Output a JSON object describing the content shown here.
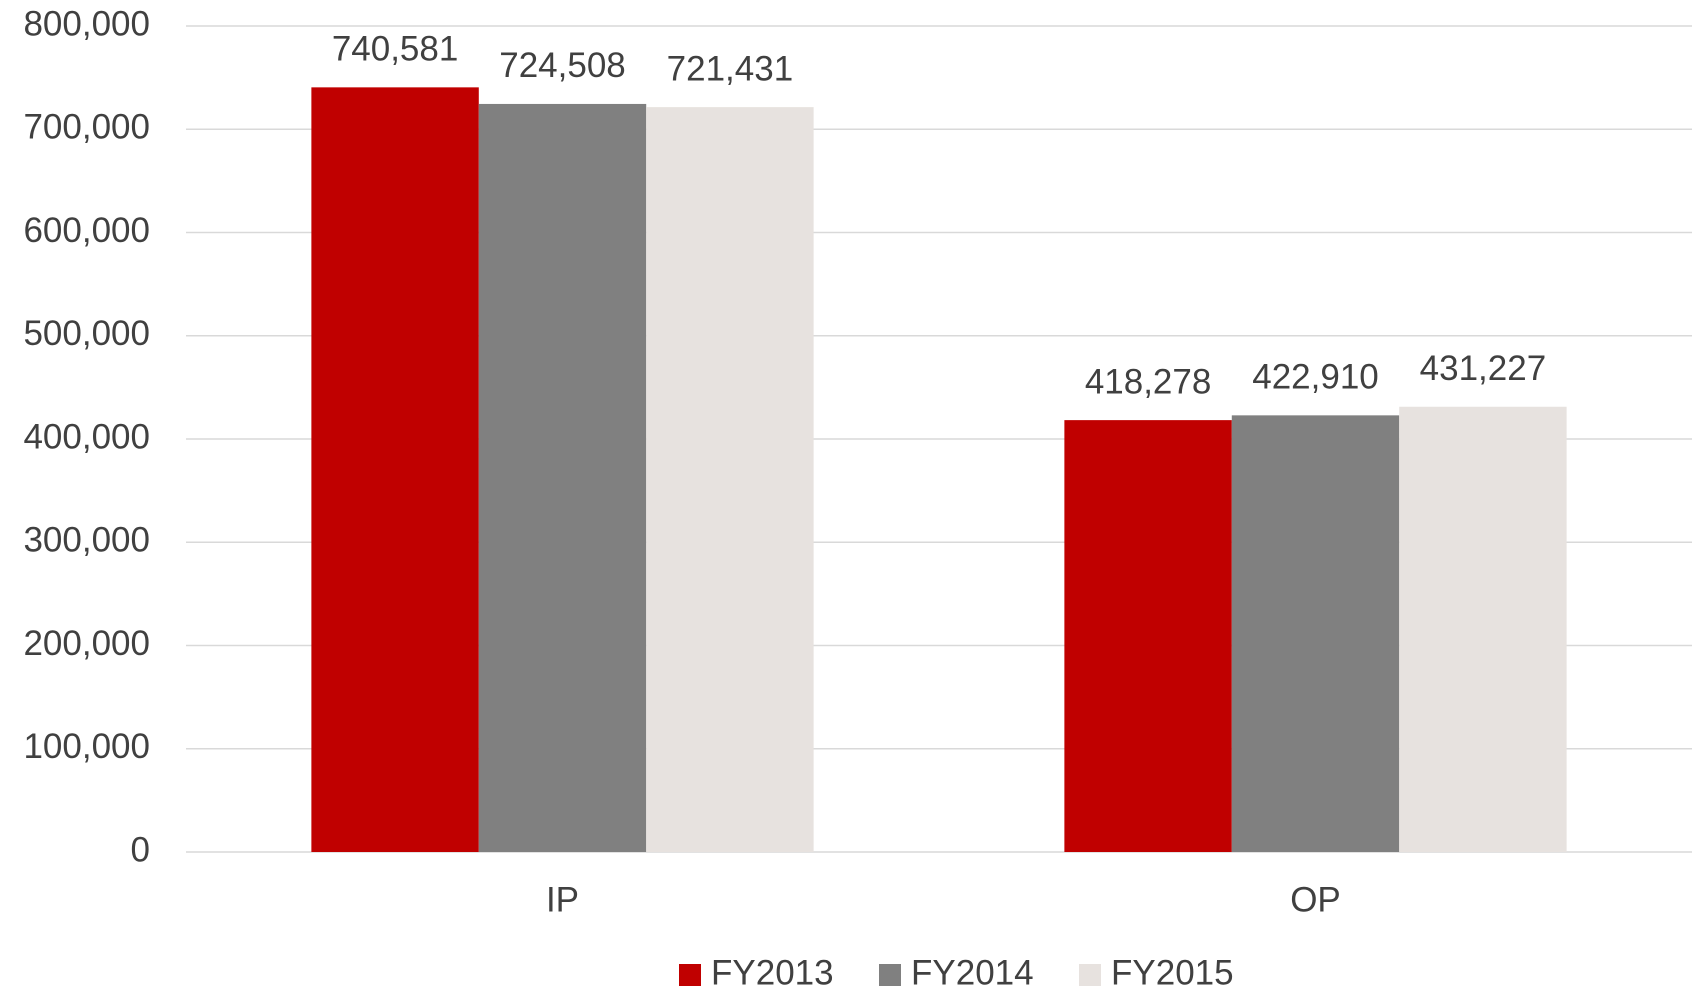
{
  "chart_data": {
    "type": "bar",
    "categories": [
      "IP",
      "OP"
    ],
    "series": [
      {
        "name": "FY2013",
        "color": "#c00000",
        "values": [
          740581,
          418278
        ],
        "value_labels": [
          "740,581",
          "418,278"
        ]
      },
      {
        "name": "FY2014",
        "color": "#808080",
        "values": [
          724508,
          422910
        ],
        "value_labels": [
          "724,508",
          "422,910"
        ]
      },
      {
        "name": "FY2015",
        "color": "#e7e2df",
        "values": [
          721431,
          431227
        ],
        "value_labels": [
          "721,431",
          "431,227"
        ]
      }
    ],
    "ylim": [
      0,
      800000
    ],
    "yticks": [
      0,
      {
        "value": 100000,
        "label": "100,000"
      },
      {
        "value": 200000,
        "label": "200,000"
      },
      {
        "value": 300000,
        "label": "300,000"
      },
      {
        "value": 400000,
        "label": "400,000"
      },
      {
        "value": 500000,
        "label": "500,000"
      },
      {
        "value": 600000,
        "label": "600,000"
      },
      {
        "value": 700000,
        "label": "700,000"
      },
      {
        "value": 800000,
        "label": "800,000"
      }
    ],
    "grid": true,
    "legend": "bottom"
  }
}
